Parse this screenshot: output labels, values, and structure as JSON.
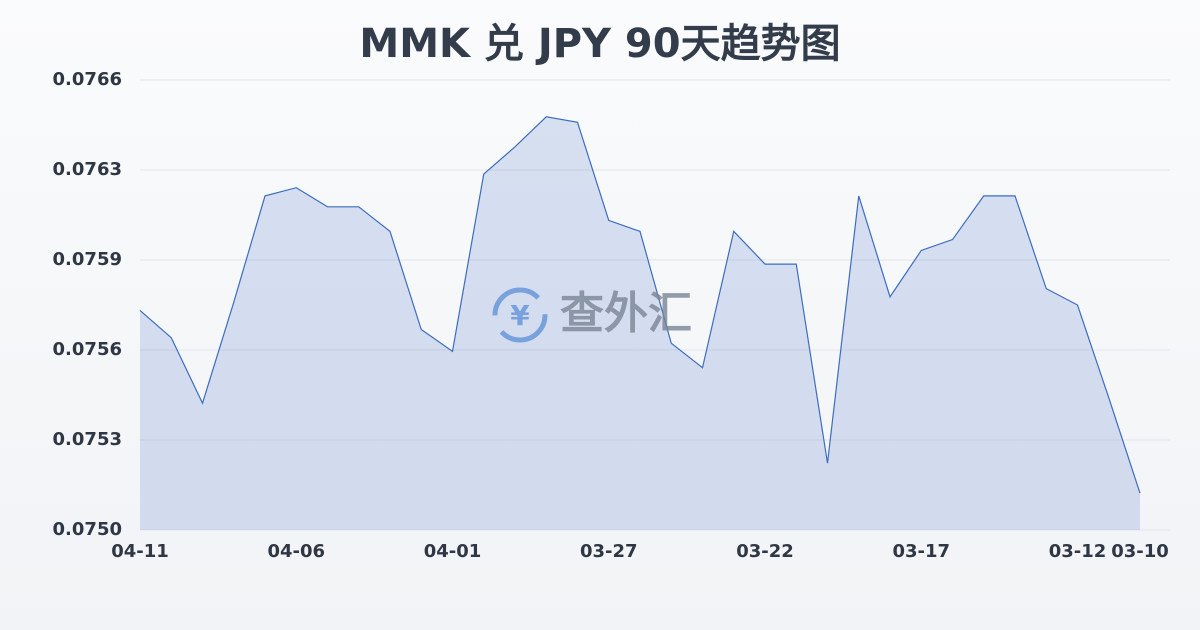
{
  "chart_data": {
    "type": "area",
    "title": "MMK 兑 JPY 90天趋势图",
    "watermark": "查外汇",
    "categories": [
      "04-11",
      null,
      null,
      null,
      null,
      "04-06",
      null,
      null,
      null,
      null,
      "04-01",
      null,
      null,
      null,
      null,
      "03-27",
      null,
      null,
      null,
      null,
      "03-22",
      null,
      null,
      null,
      null,
      "03-17",
      null,
      null,
      null,
      null,
      "03-12",
      null,
      "03-10"
    ],
    "values": [
      0.07576,
      0.07566,
      0.07542,
      0.07579,
      0.07618,
      0.07621,
      0.07614,
      0.07614,
      0.07605,
      0.07569,
      0.07561,
      0.07626,
      0.07636,
      0.07647,
      0.07645,
      0.07609,
      0.07605,
      0.07564,
      0.07555,
      0.07605,
      0.07593,
      0.07593,
      0.0752,
      0.07618,
      0.07581,
      0.07598,
      0.07602,
      0.07618,
      0.07618,
      0.07584,
      0.07578,
      0.07544,
      0.07509
    ],
    "color": "#3d6cc0",
    "ylim": [
      0.074955,
      0.076605
    ],
    "yticks": [
      {
        "value": 0.074955,
        "label": "0.0750"
      },
      {
        "value": 0.075285,
        "label": "0.0753"
      },
      {
        "value": 0.075615,
        "label": "0.0756"
      },
      {
        "value": 0.075945,
        "label": "0.0759"
      },
      {
        "value": 0.076275,
        "label": "0.0763"
      },
      {
        "value": 0.076605,
        "label": "0.0766"
      }
    ],
    "grid": true
  }
}
